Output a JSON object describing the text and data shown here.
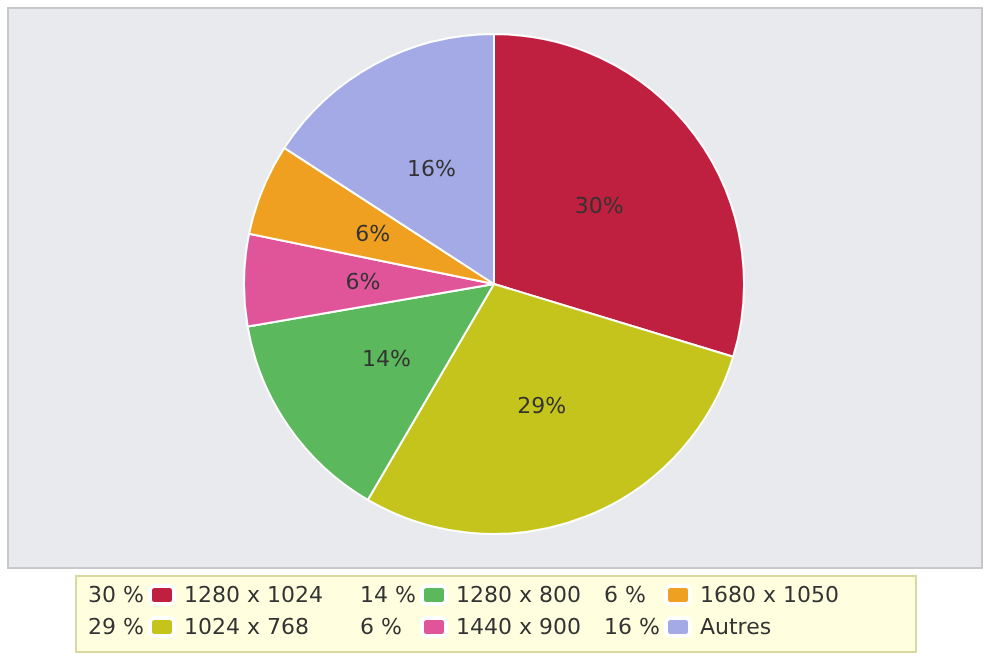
{
  "chart_data": {
    "type": "pie",
    "categories": [
      "1280 x 1024",
      "1024 x 768",
      "1280 x 800",
      "1440 x 900",
      "1680 x 1050",
      "Autres"
    ],
    "values": [
      30,
      29,
      14,
      6,
      6,
      16
    ],
    "value_labels": [
      "30%",
      "29%",
      "14%",
      "6%",
      "6%",
      "16%"
    ],
    "annotations": [
      "30 %",
      "29 %",
      "14 %",
      "6 %",
      "6 %",
      "16 %"
    ],
    "colors": [
      "#c0203f",
      "#c4c41c",
      "#5cb85c",
      "#e0559a",
      "#f0a020",
      "#a4aae6"
    ],
    "legend": "bottom"
  }
}
